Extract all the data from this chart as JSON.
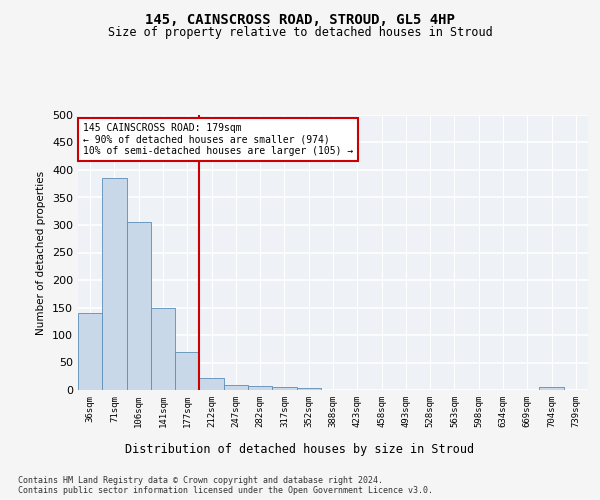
{
  "title_line1": "145, CAINSCROSS ROAD, STROUD, GL5 4HP",
  "title_line2": "Size of property relative to detached houses in Stroud",
  "xlabel": "Distribution of detached houses by size in Stroud",
  "ylabel": "Number of detached properties",
  "categories": [
    "36sqm",
    "71sqm",
    "106sqm",
    "141sqm",
    "177sqm",
    "212sqm",
    "247sqm",
    "282sqm",
    "317sqm",
    "352sqm",
    "388sqm",
    "423sqm",
    "458sqm",
    "493sqm",
    "528sqm",
    "563sqm",
    "598sqm",
    "634sqm",
    "669sqm",
    "704sqm",
    "739sqm"
  ],
  "values": [
    140,
    385,
    305,
    150,
    70,
    22,
    10,
    8,
    6,
    4,
    0,
    0,
    0,
    0,
    0,
    0,
    0,
    0,
    0,
    5,
    0
  ],
  "bar_color": "#c8d8e8",
  "bar_edge_color": "#5b8db8",
  "vline_x": 4.5,
  "vline_color": "#cc0000",
  "annotation_text": "145 CAINSCROSS ROAD: 179sqm\n← 90% of detached houses are smaller (974)\n10% of semi-detached houses are larger (105) →",
  "annotation_box_color": "#ffffff",
  "annotation_box_edge": "#cc0000",
  "ylim": [
    0,
    500
  ],
  "yticks": [
    0,
    50,
    100,
    150,
    200,
    250,
    300,
    350,
    400,
    450,
    500
  ],
  "bg_color": "#eef2f7",
  "grid_color": "#ffffff",
  "fig_bg_color": "#f5f5f5",
  "footnote": "Contains HM Land Registry data © Crown copyright and database right 2024.\nContains public sector information licensed under the Open Government Licence v3.0."
}
